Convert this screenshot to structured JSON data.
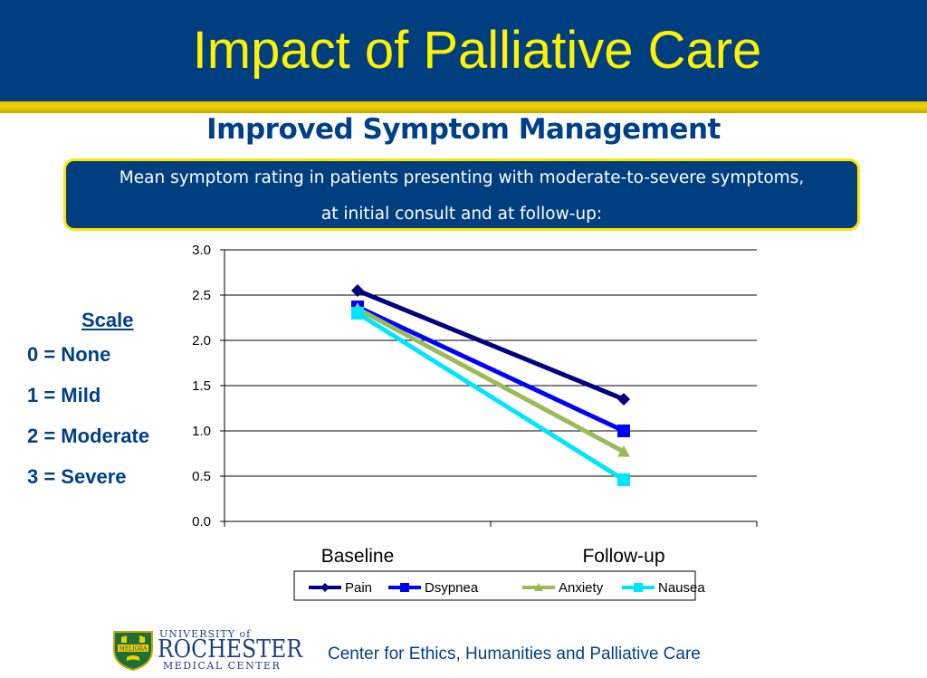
{
  "header": {
    "title": "Impact of Palliative Care"
  },
  "subtitle": "Improved Symptom Management",
  "description": {
    "line1": "Mean symptom rating in patients presenting with moderate-to-severe symptoms,",
    "line2": "at initial consult and at follow-up:"
  },
  "scale": {
    "title": "Scale",
    "items": [
      "0 = None",
      "1 = Mild",
      "2 = Moderate",
      "3 = Severe"
    ]
  },
  "chart_data": {
    "type": "line",
    "categories": [
      "Baseline",
      "Follow-up"
    ],
    "series": [
      {
        "name": "Pain",
        "values": [
          2.55,
          1.35
        ],
        "color": "#000080",
        "marker": "diamond"
      },
      {
        "name": "Dsypnea",
        "values": [
          2.37,
          1.0
        ],
        "color": "#0000ff",
        "marker": "square"
      },
      {
        "name": "Anxiety",
        "values": [
          2.35,
          0.77
        ],
        "color": "#9bbb59",
        "marker": "triangle"
      },
      {
        "name": "Nausea",
        "values": [
          2.3,
          0.46
        ],
        "color": "#00e5ff",
        "marker": "square"
      }
    ],
    "ylim": [
      0,
      3
    ],
    "yticks": [
      "0.0",
      "0.5",
      "1.0",
      "1.5",
      "2.0",
      "2.5",
      "3.0"
    ],
    "grid": true,
    "legend": "bottom"
  },
  "footer": {
    "logo_lines": [
      "UNIVERSITY of",
      "ROCHESTER",
      "MEDICAL CENTER"
    ],
    "logo_seal_text": "MELIORA",
    "text": "Center for Ethics, Humanities and Palliative Care",
    "brand_color": "#00408a"
  }
}
